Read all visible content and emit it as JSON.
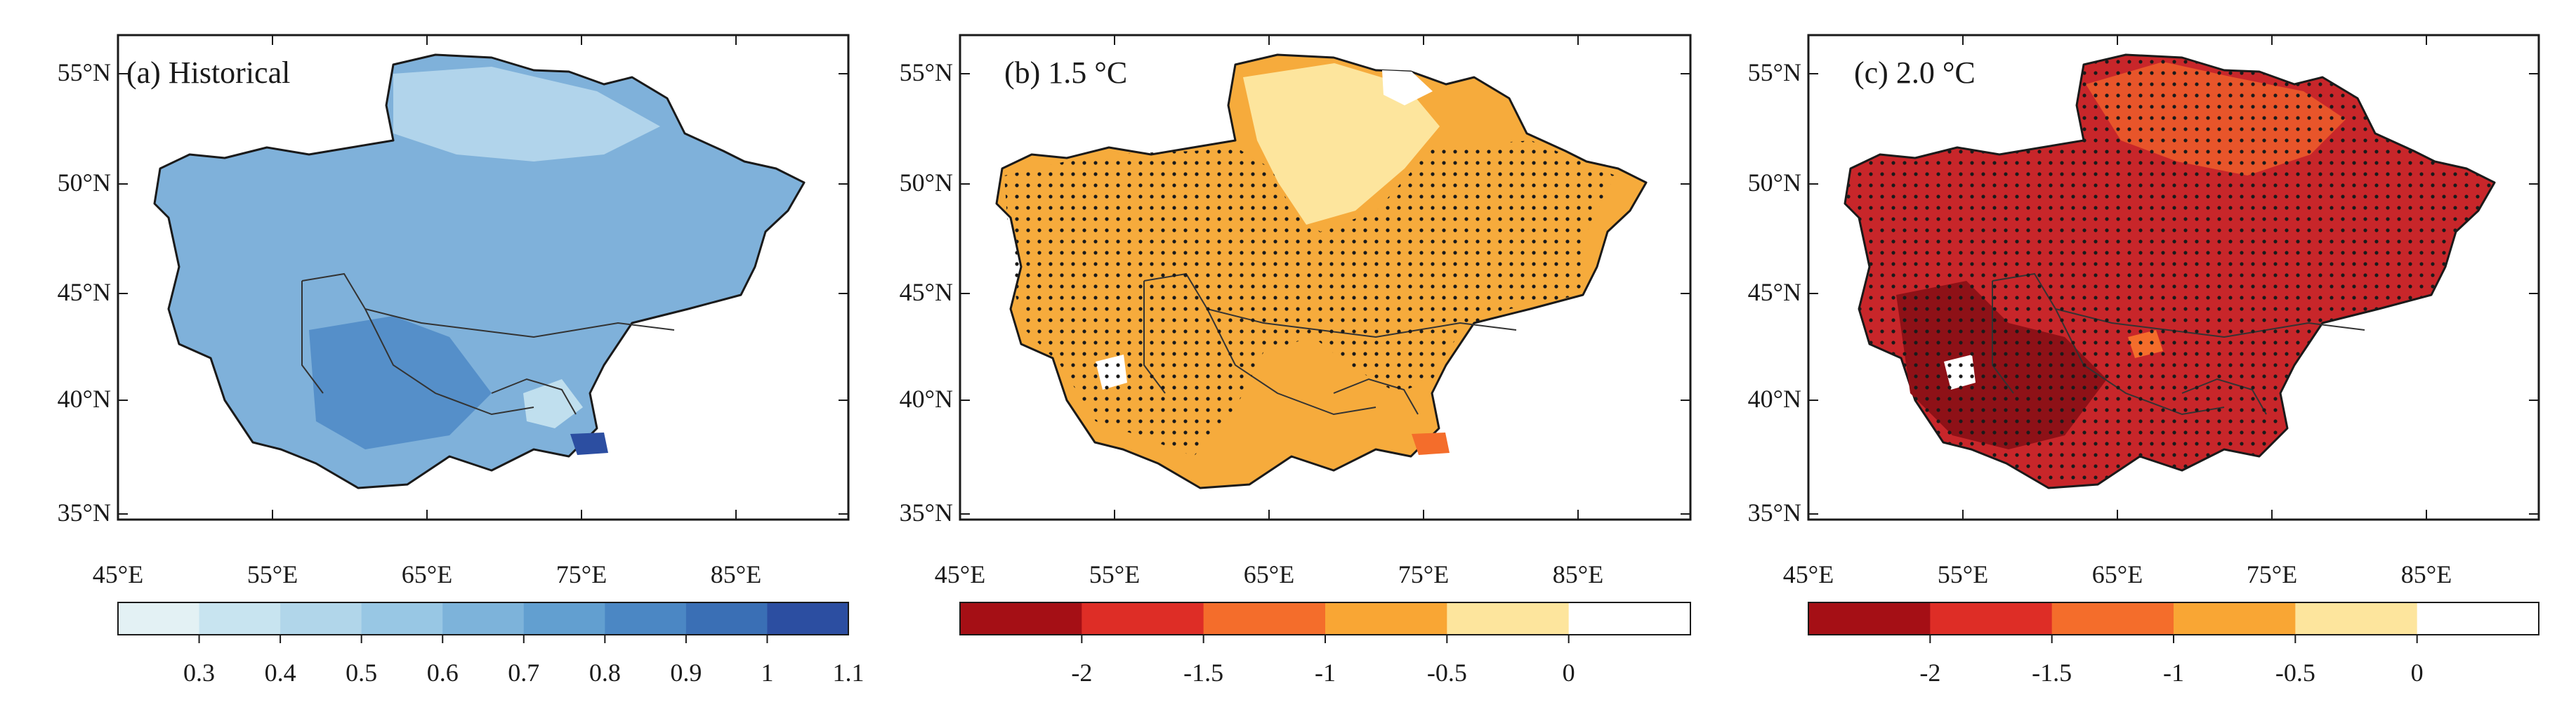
{
  "panels": [
    {
      "label": "(a) Historical",
      "lat_ticks": [
        "55°N",
        "50°N",
        "45°N",
        "40°N",
        "35°N"
      ],
      "lon_ticks": [
        "45°E",
        "55°E",
        "65°E",
        "75°E",
        "85°E"
      ],
      "colorbar": {
        "colors": [
          "#e3f1f4",
          "#c8e4f0",
          "#b1d6ea",
          "#98c7e4",
          "#7db3da",
          "#629fd0",
          "#4b87c4",
          "#3a6fb5",
          "#2c4ea1"
        ],
        "labels": [
          "0.3",
          "0.4",
          "0.5",
          "0.6",
          "0.7",
          "0.8",
          "0.9",
          "1",
          "1.1"
        ]
      },
      "fill": "#7fb1da",
      "stippled": false
    },
    {
      "label": "(b) 1.5 °C",
      "lat_ticks": [
        "55°N",
        "50°N",
        "45°N",
        "40°N",
        "35°N"
      ],
      "lon_ticks": [
        "45°E",
        "55°E",
        "65°E",
        "75°E",
        "85°E"
      ],
      "colorbar": {
        "colors": [
          "#a50f15",
          "#de2d26",
          "#f46d2b",
          "#f9a634",
          "#fde59d",
          "#ffffff"
        ],
        "labels": [
          "-2",
          "-1.5",
          "-1",
          "-0.5",
          "0"
        ]
      },
      "fill": "#f6ab3c",
      "stippled": true
    },
    {
      "label": "(c) 2.0 °C",
      "lat_ticks": [
        "55°N",
        "50°N",
        "45°N",
        "40°N",
        "35°N"
      ],
      "lon_ticks": [
        "45°E",
        "55°E",
        "65°E",
        "75°E",
        "85°E"
      ],
      "colorbar": {
        "colors": [
          "#a50f15",
          "#de2d26",
          "#f46d2b",
          "#f9a634",
          "#fde59d",
          "#ffffff"
        ],
        "labels": [
          "-2",
          "-1.5",
          "-1",
          "-0.5",
          "0"
        ]
      },
      "fill": "#c8262a",
      "stippled": true
    }
  ]
}
